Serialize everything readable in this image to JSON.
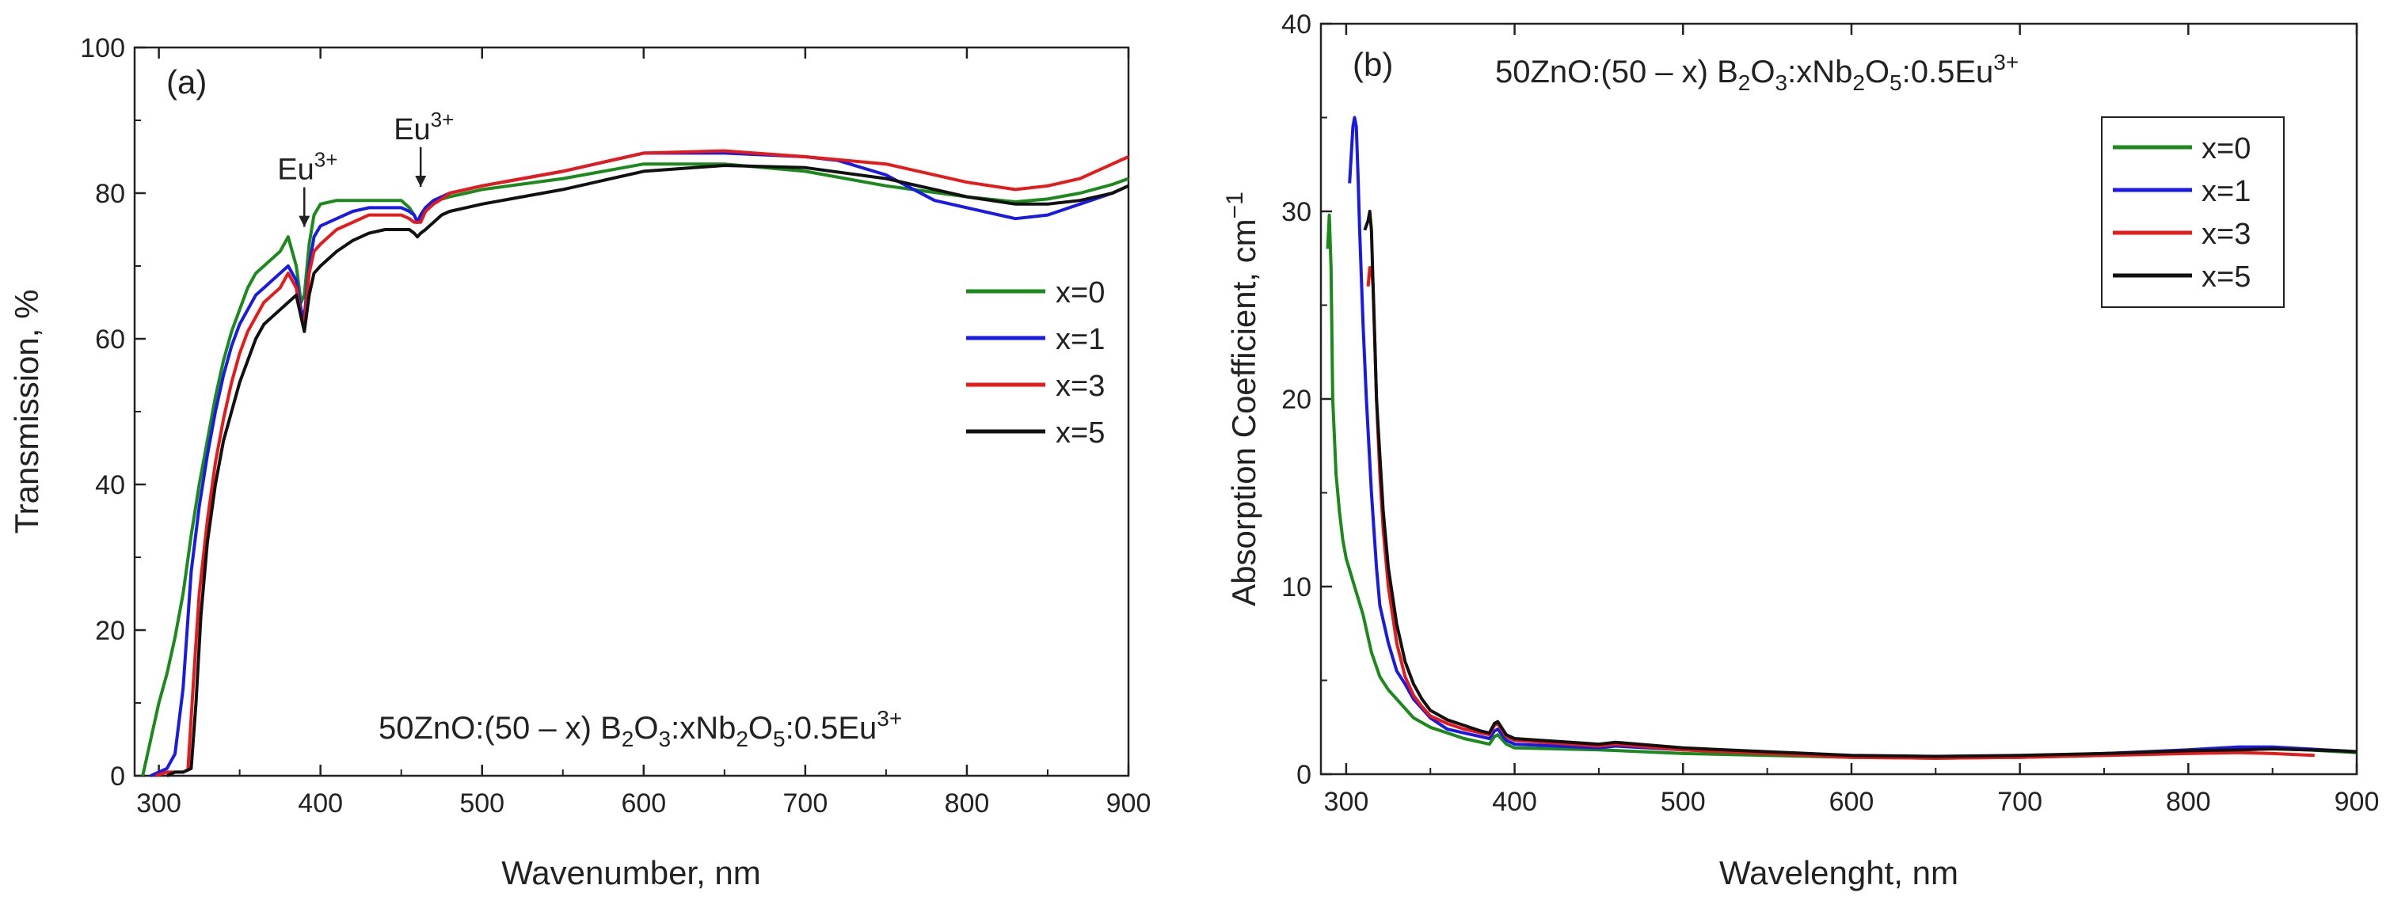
{
  "chart_data": [
    {
      "type": "line",
      "panel_label": "(a)",
      "xlabel": "Wavenumber, nm",
      "ylabel": "Transmission, %",
      "xlim": [
        285,
        900
      ],
      "ylim": [
        0,
        100
      ],
      "xticks": [
        300,
        400,
        500,
        600,
        700,
        800,
        900
      ],
      "yticks": [
        0,
        20,
        40,
        60,
        80,
        100
      ],
      "formula": {
        "pre": "50ZnO:(50 – x) B",
        "s1": "2",
        "mid1": "O",
        "s2": "3",
        "mid2": ":xNb",
        "s3": "2",
        "mid3": "O",
        "s4": "5",
        "mid4": ":0.5Eu",
        "sup": "3+"
      },
      "legend_position": "right",
      "annotations": [
        {
          "base": "Eu",
          "sup": "3+",
          "x": 390,
          "y": 74.5
        },
        {
          "base": "Eu",
          "sup": "3+",
          "x": 462,
          "y": 80
        }
      ],
      "series": [
        {
          "name": "x=0",
          "color": "#1a8a1a",
          "x": [
            290,
            295,
            300,
            305,
            310,
            315,
            320,
            325,
            330,
            335,
            340,
            345,
            350,
            355,
            360,
            365,
            370,
            375,
            380,
            385,
            388,
            390,
            393,
            396,
            400,
            410,
            420,
            430,
            440,
            450,
            455,
            458,
            460,
            462,
            465,
            470,
            475,
            480,
            490,
            500,
            550,
            600,
            650,
            700,
            750,
            800,
            830,
            850,
            870,
            890,
            900
          ],
          "y": [
            0,
            5,
            10,
            14,
            19,
            25,
            33,
            40,
            46,
            52,
            57,
            61,
            64,
            67,
            69,
            70,
            71,
            72,
            74,
            70,
            65,
            66,
            73,
            77,
            78.5,
            79,
            79,
            79,
            79,
            79,
            78,
            77,
            76,
            77,
            78,
            79,
            79.2,
            79.5,
            80,
            80.5,
            82,
            84,
            84,
            83,
            81,
            79.5,
            78.8,
            79.2,
            80,
            81.2,
            82
          ]
        },
        {
          "name": "x=1",
          "color": "#1a1ae6",
          "x": [
            295,
            300,
            305,
            310,
            315,
            320,
            325,
            330,
            335,
            340,
            345,
            350,
            355,
            360,
            365,
            370,
            375,
            380,
            385,
            388,
            390,
            393,
            396,
            400,
            410,
            420,
            430,
            440,
            450,
            455,
            458,
            460,
            462,
            465,
            470,
            475,
            480,
            490,
            500,
            550,
            600,
            650,
            700,
            720,
            750,
            780,
            800,
            830,
            850,
            870,
            890,
            900
          ],
          "y": [
            0,
            0.5,
            1,
            3,
            12,
            28,
            37,
            44,
            50,
            55,
            59,
            62,
            64,
            66,
            67,
            68,
            69,
            70,
            68,
            64,
            63,
            70,
            74,
            75.5,
            76.5,
            77.5,
            78,
            78,
            78,
            77.5,
            77,
            76,
            77,
            78,
            79,
            79.5,
            80,
            80.5,
            81,
            83,
            85.5,
            85.5,
            85,
            84.5,
            82.5,
            79,
            78,
            76.5,
            77,
            78.5,
            80,
            81
          ]
        },
        {
          "name": "x=3",
          "color": "#e61a1a",
          "x": [
            298,
            305,
            310,
            315,
            318,
            322,
            325,
            330,
            335,
            340,
            345,
            350,
            355,
            360,
            365,
            370,
            375,
            380,
            385,
            388,
            390,
            393,
            396,
            400,
            410,
            420,
            430,
            440,
            450,
            455,
            458,
            460,
            462,
            465,
            470,
            475,
            480,
            490,
            500,
            550,
            600,
            650,
            700,
            750,
            800,
            830,
            850,
            870,
            890,
            900
          ],
          "y": [
            0,
            0.5,
            0.5,
            0.5,
            0.8,
            15,
            25,
            35,
            43,
            49,
            54,
            58,
            61,
            63,
            65,
            66,
            67,
            69,
            67,
            63,
            62,
            69,
            72,
            73,
            75,
            76,
            77,
            77,
            77,
            76.5,
            76,
            76,
            76,
            77.5,
            78.5,
            79.2,
            80,
            80.5,
            81,
            83,
            85.5,
            85.8,
            85,
            84,
            81.5,
            80.5,
            81,
            82,
            84,
            85
          ]
        },
        {
          "name": "x=5",
          "color": "#111111",
          "x": [
            305,
            310,
            315,
            320,
            323,
            326,
            330,
            335,
            340,
            345,
            350,
            355,
            360,
            365,
            370,
            375,
            380,
            385,
            388,
            390,
            393,
            396,
            400,
            410,
            420,
            430,
            440,
            450,
            455,
            458,
            460,
            462,
            465,
            470,
            475,
            480,
            490,
            500,
            550,
            600,
            650,
            700,
            750,
            800,
            830,
            850,
            870,
            890,
            900
          ],
          "y": [
            0,
            0.5,
            0.5,
            1,
            10,
            22,
            32,
            40,
            46,
            50,
            54,
            57,
            60,
            62,
            63,
            64,
            65,
            66,
            63,
            61,
            66,
            69,
            70,
            72,
            73.5,
            74.5,
            75,
            75,
            75,
            74.5,
            74,
            74.5,
            75,
            76,
            77,
            77.5,
            78,
            78.5,
            80.5,
            83,
            83.8,
            83.5,
            82,
            79.5,
            78.5,
            78.5,
            79,
            80,
            81
          ]
        }
      ]
    },
    {
      "type": "line",
      "panel_label": "(b)",
      "xlabel": "Wavelenght, nm",
      "ylabel": "Absorption Coefficient, cm",
      "ylabel_sup": "−1",
      "xlim": [
        285,
        900
      ],
      "ylim": [
        0,
        40
      ],
      "xticks": [
        300,
        400,
        500,
        600,
        700,
        800,
        900
      ],
      "yticks": [
        0,
        10,
        20,
        30,
        40
      ],
      "formula": {
        "pre": "50ZnO:(50 – x) B",
        "s1": "2",
        "mid1": "O",
        "s2": "3",
        "mid2": ":xNb",
        "s3": "2",
        "mid3": "O",
        "s4": "5",
        "mid4": ":0.5Eu",
        "sup": "3+"
      },
      "legend_position": "top-right",
      "series": [
        {
          "name": "x=0",
          "color": "#1a8a1a",
          "x": [
            289,
            290,
            291,
            292,
            294,
            296,
            298,
            300,
            305,
            310,
            315,
            320,
            325,
            330,
            340,
            350,
            360,
            370,
            380,
            385,
            388,
            390,
            395,
            400,
            450,
            500,
            550,
            600,
            650,
            700,
            750,
            800,
            830,
            850,
            870,
            890,
            900
          ],
          "y": [
            28,
            29.8,
            27,
            20,
            16,
            14,
            12.5,
            11.5,
            10,
            8.5,
            6.5,
            5.2,
            4.5,
            4,
            3,
            2.5,
            2.2,
            1.9,
            1.7,
            1.6,
            2,
            2.1,
            1.6,
            1.4,
            1.3,
            1.1,
            1,
            0.9,
            0.85,
            0.9,
            1,
            1.2,
            1.3,
            1.35,
            1.3,
            1.2,
            1.15
          ]
        },
        {
          "name": "x=1",
          "color": "#1a1ae6",
          "x": [
            302,
            303,
            304,
            305,
            306,
            307,
            308,
            310,
            312,
            315,
            318,
            320,
            325,
            330,
            335,
            340,
            350,
            360,
            370,
            380,
            385,
            388,
            390,
            395,
            400,
            450,
            460,
            500,
            550,
            600,
            650,
            700,
            750,
            800,
            830,
            850,
            870,
            890,
            900
          ],
          "y": [
            31.5,
            33,
            34.5,
            35,
            34.5,
            32,
            29,
            24,
            20,
            15,
            11,
            9,
            7,
            5.5,
            4.8,
            4,
            3,
            2.4,
            2.2,
            2,
            1.9,
            2.3,
            2.4,
            1.8,
            1.6,
            1.4,
            1.5,
            1.3,
            1.1,
            0.95,
            0.9,
            0.95,
            1.1,
            1.3,
            1.45,
            1.45,
            1.35,
            1.25,
            1.2
          ]
        },
        {
          "name": "x=3",
          "color": "#e61a1a",
          "x": [
            313,
            314,
            315,
            316,
            317,
            318,
            320,
            322,
            325,
            330,
            335,
            340,
            345,
            350,
            360,
            370,
            380,
            385,
            388,
            390,
            395,
            400,
            450,
            460,
            500,
            550,
            600,
            650,
            700,
            750,
            800,
            830,
            850,
            875
          ],
          "y": [
            26,
            27,
            27,
            26,
            23,
            20,
            16,
            13,
            10,
            7,
            5.2,
            4.2,
            3.6,
            3.1,
            2.7,
            2.4,
            2.2,
            2.1,
            2.6,
            2.7,
            2,
            1.8,
            1.5,
            1.6,
            1.3,
            1.1,
            0.9,
            0.85,
            0.9,
            1,
            1.1,
            1.15,
            1.1,
            1
          ]
        },
        {
          "name": "x=5",
          "color": "#111111",
          "x": [
            311,
            313,
            314,
            315,
            316,
            317,
            318,
            320,
            322,
            325,
            330,
            335,
            340,
            345,
            350,
            360,
            370,
            380,
            385,
            388,
            390,
            395,
            400,
            450,
            460,
            500,
            550,
            600,
            650,
            700,
            750,
            800,
            830,
            850,
            870,
            890,
            900
          ],
          "y": [
            29,
            29.5,
            30,
            29,
            26,
            23,
            20,
            17,
            14,
            11,
            8,
            6,
            4.8,
            4,
            3.4,
            2.9,
            2.6,
            2.3,
            2.2,
            2.7,
            2.8,
            2.1,
            1.9,
            1.6,
            1.7,
            1.4,
            1.2,
            1,
            0.95,
            1,
            1.1,
            1.25,
            1.3,
            1.35,
            1.3,
            1.25,
            1.2
          ]
        }
      ]
    }
  ]
}
